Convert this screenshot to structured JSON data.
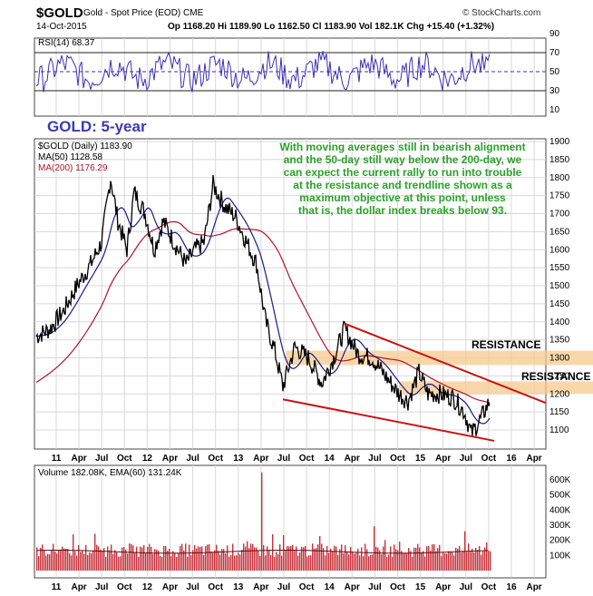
{
  "header": {
    "symbol": "$GOLD",
    "description": "Gold - Spot Price (EOD)  CME",
    "date": "14-Oct-2015",
    "quote": "Op 1168.20  Hi 1189.90  Lo 1162.50  Cl 1183.90  Vol 182.1K  Chg +15.40 (+1.32%)",
    "brand": "© StockCharts.com"
  },
  "rsi_panel": {
    "label": "RSI(14) 68.37",
    "ticks": [
      "90",
      "70",
      "50",
      "30",
      "10"
    ]
  },
  "price_panel": {
    "legend_main": "$GOLD (Daily) 1183.90",
    "legend_ma50": "MA(50) 1128.58",
    "legend_ma200": "MA(200) 1176.29",
    "big_title": "GOLD: 5-year",
    "annotation": [
      "With moving averages still in bearish alignment",
      "and the 50-day still way below the 200-day, we",
      "can expect the current rally to run into trouble",
      "at the resistance and trendline shown as a",
      "maximum objective at this point, unless",
      "that is, the dollar index breaks below 93."
    ],
    "resistance_1": "RESISTANCE",
    "resistance_2": "RESISTANCE",
    "ticks": [
      "1900",
      "1850",
      "1800",
      "1750",
      "1700",
      "1650",
      "1600",
      "1550",
      "1500",
      "1450",
      "1400",
      "1350",
      "1300",
      "1250",
      "1200",
      "1150",
      "1100"
    ]
  },
  "volume_panel": {
    "label": "Volume 182.08K, EMA(60) 131.24K",
    "ticks": [
      "600K",
      "500K",
      "400K",
      "300K",
      "200K",
      "100K"
    ]
  },
  "x_axis": {
    "labels": [
      "11",
      "Apr",
      "Jul",
      "Oct",
      "12",
      "Apr",
      "Jul",
      "Oct",
      "13",
      "Apr",
      "Jul",
      "Oct",
      "14",
      "Apr",
      "Jul",
      "Oct",
      "15",
      "Apr",
      "Jul",
      "Oct",
      "16",
      "Apr"
    ]
  },
  "colors": {
    "price": "#000000",
    "ma50": "#1a1a8c",
    "ma200": "#b0152a",
    "rsi": "#3b2fb5",
    "trendline": "#c81414",
    "resistance_band": "#f7c98f",
    "annotation": "#2aa12a",
    "volume": "#c8323c"
  },
  "chart_data": [
    {
      "type": "line",
      "title": "GOLD: 5-year",
      "series": [
        {
          "name": "$GOLD (Daily)",
          "x": [
            "11",
            "Apr",
            "Jul",
            "Oct",
            "12",
            "Apr",
            "Jul",
            "Oct",
            "13",
            "Apr",
            "Jul",
            "Oct",
            "14",
            "Apr",
            "Jul",
            "Oct",
            "15",
            "Apr",
            "Jul",
            "Oct"
          ],
          "values": [
            1360,
            1440,
            1560,
            1650,
            1620,
            1640,
            1590,
            1750,
            1680,
            1480,
            1280,
            1310,
            1260,
            1320,
            1300,
            1230,
            1240,
            1200,
            1140,
            1175
          ]
        },
        {
          "name": "MA(50)",
          "values": [
            1360,
            1420,
            1520,
            1680,
            1640,
            1660,
            1600,
            1750,
            1680,
            1580,
            1300,
            1310,
            1260,
            1300,
            1300,
            1250,
            1230,
            1200,
            1150,
            1128
          ]
        },
        {
          "name": "MA(200)",
          "values": [
            1200,
            1330,
            1450,
            1560,
            1620,
            1650,
            1620,
            1680,
            1680,
            1640,
            1500,
            1380,
            1290,
            1300,
            1290,
            1280,
            1250,
            1220,
            1200,
            1176
          ]
        }
      ],
      "ylim": [
        1050,
        1900
      ]
    },
    {
      "type": "line",
      "title": "RSI(14) 68.37",
      "ylim": [
        10,
        90
      ]
    },
    {
      "type": "bar",
      "title": "Volume 182.08K, EMA(60) 131.24K",
      "ylim": [
        0,
        600000
      ]
    }
  ]
}
